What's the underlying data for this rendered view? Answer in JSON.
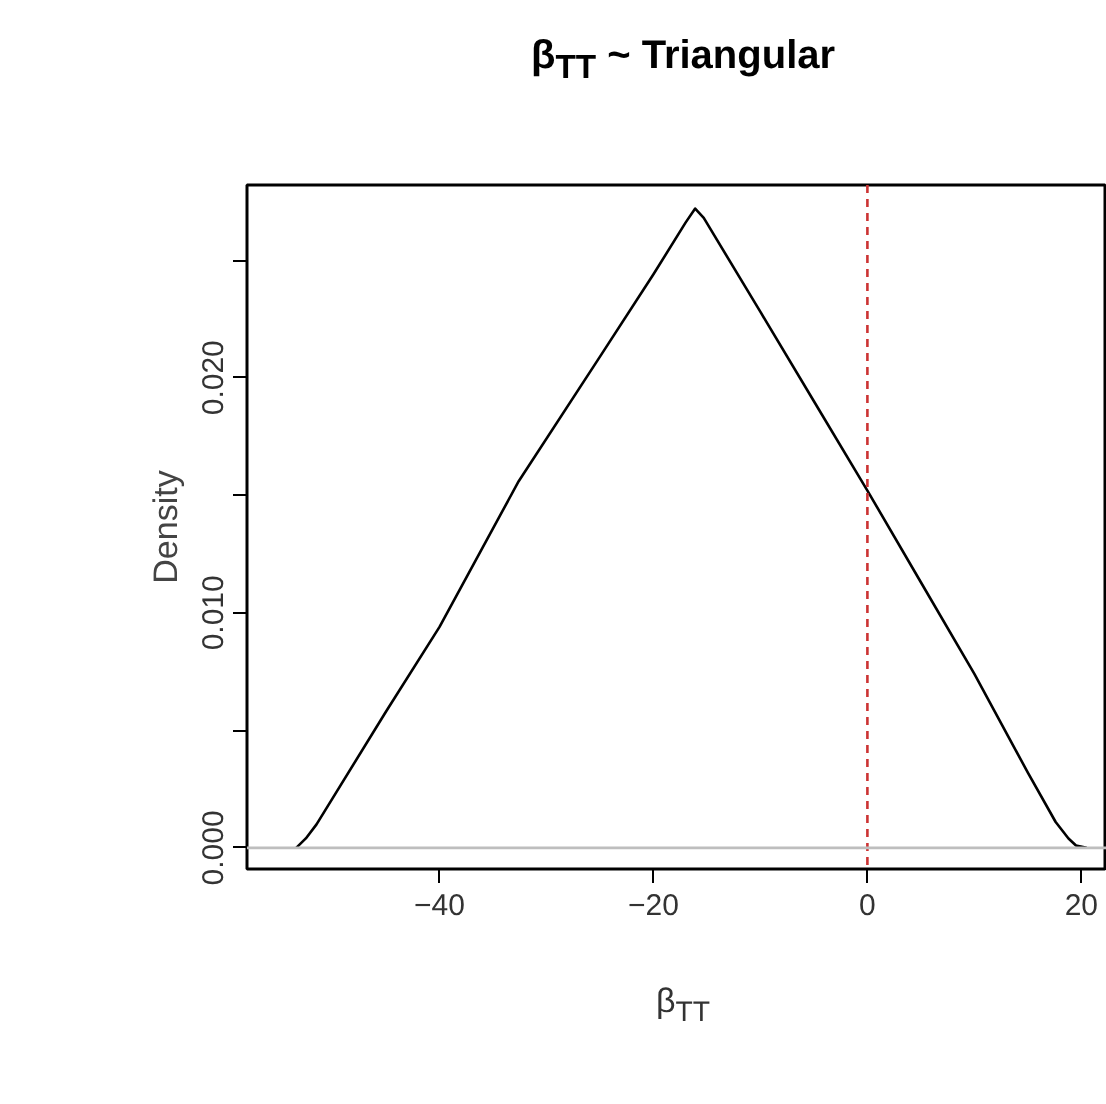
{
  "chart_data": {
    "type": "line",
    "title": "β$_{TT}$ ~ Triangular",
    "xlabel": "β$_{TT}$",
    "ylabel": "Density",
    "x": [
      -53.4,
      -52.5,
      -51.5,
      -45,
      -40,
      -32.6,
      -25,
      -20,
      -17,
      -16.1,
      -15.3,
      -10,
      -5,
      0,
      5,
      10,
      15,
      17.6,
      18.8,
      19.5,
      20.5
    ],
    "series": [
      {
        "color": "#000000",
        "values": [
          0,
          0.0004,
          0.001,
          0.0058,
          0.0094,
          0.0156,
          0.0209,
          0.0244,
          0.0266,
          0.0272,
          0.0268,
          0.0228,
          0.019,
          0.0152,
          0.0113,
          0.0074,
          0.0032,
          0.0011,
          0.0004,
          0.0001,
          0
        ]
      }
    ],
    "xlim": [
      -58,
      22.4
    ],
    "ylim": [
      -0.0009,
      0.0282
    ],
    "xticks": [
      -40,
      -20,
      0,
      20
    ],
    "yticks": [
      {
        "value": 0,
        "label": "0.000"
      },
      {
        "value": 0.005,
        "label": null
      },
      {
        "value": 0.01,
        "label": "0.010"
      },
      {
        "value": 0.015,
        "label": null
      },
      {
        "value": 0.02,
        "label": "0.020"
      },
      {
        "value": 0.025,
        "label": null
      }
    ],
    "ref_lines": [
      {
        "axis": "x",
        "value": 0,
        "color": "#cc3333",
        "line_style": "dashed"
      },
      {
        "axis": "y",
        "value": 0,
        "color": "#bebebe",
        "line_style": "solid"
      }
    ],
    "grid": false,
    "marker": "none",
    "line_style": "solid"
  }
}
